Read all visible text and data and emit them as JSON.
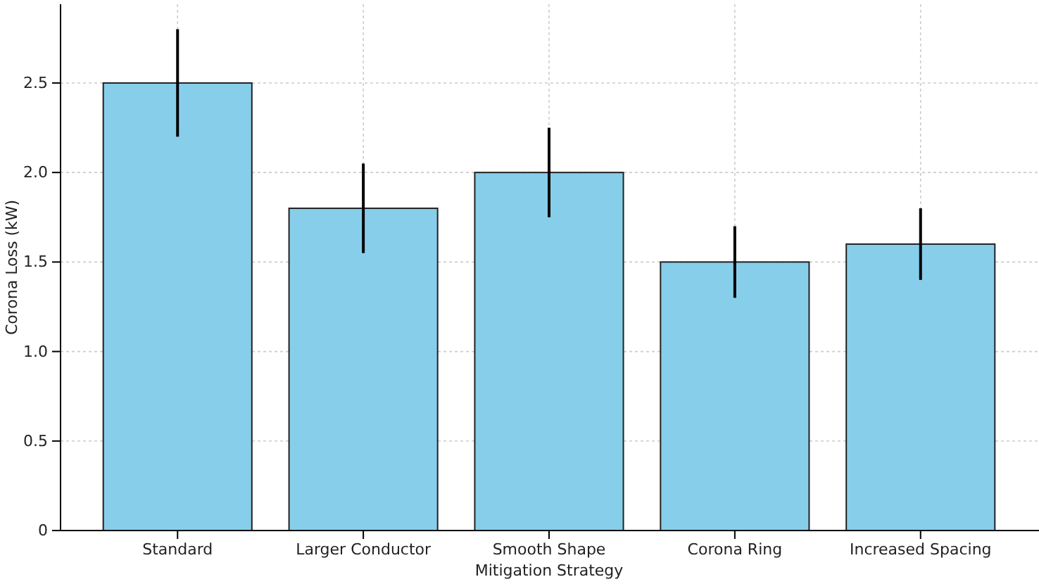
{
  "chart_data": {
    "type": "bar",
    "xlabel": "Mitigation Strategy",
    "ylabel": "Corona Loss (kW)",
    "categories": [
      "Standard",
      "Larger Conductor",
      "Smooth Shape",
      "Corona Ring",
      "Increased Spacing"
    ],
    "values": [
      2.5,
      1.8,
      2.0,
      1.5,
      1.6
    ],
    "errors": [
      0.3,
      0.25,
      0.25,
      0.2,
      0.2
    ],
    "color": "#87ceeb",
    "ylim": [
      0,
      2.94
    ],
    "yticks": [
      0,
      {
        "value": 0.5,
        "label": "0.5"
      },
      {
        "value": 1,
        "label": "1.0"
      },
      {
        "value": 1.5,
        "label": "1.5"
      },
      {
        "value": 2,
        "label": "2.0"
      },
      {
        "value": 2.5,
        "label": "2.5"
      }
    ],
    "grid": true
  }
}
